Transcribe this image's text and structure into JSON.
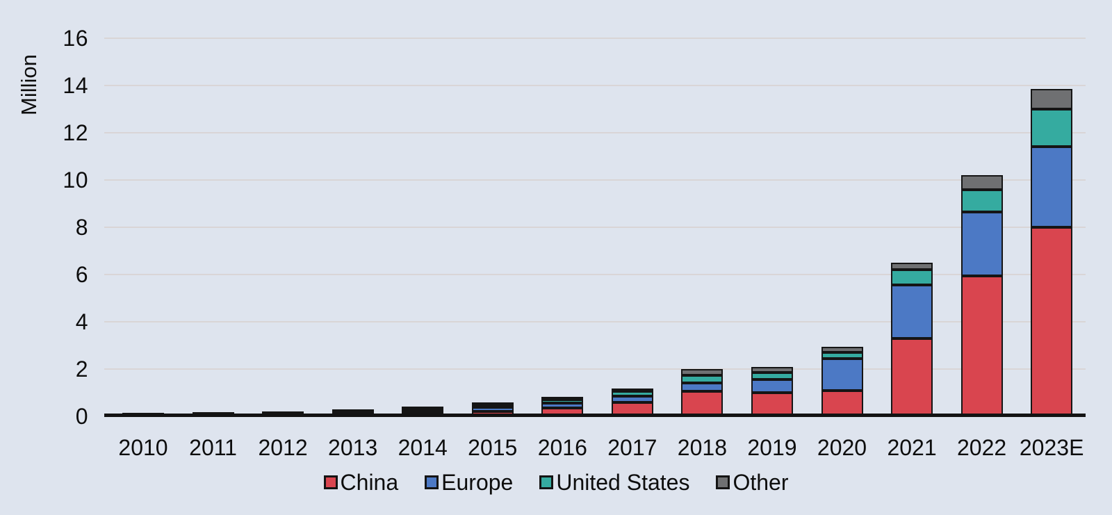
{
  "chart_data": {
    "type": "bar",
    "stacked": true,
    "title": "",
    "ylabel": "Million",
    "xlabel": "",
    "ylim": [
      0,
      16
    ],
    "ytick_step": 2,
    "yticks": [
      "0",
      "2",
      "4",
      "6",
      "8",
      "10",
      "12",
      "14",
      "16"
    ],
    "grid": true,
    "legend_position": "bottom",
    "categories": [
      "2010",
      "2011",
      "2012",
      "2013",
      "2014",
      "2015",
      "2016",
      "2017",
      "2018",
      "2019",
      "2020",
      "2021",
      "2022",
      "2023E"
    ],
    "series": [
      {
        "name": "China",
        "color": "#d9454f",
        "values": [
          0.01,
          0.01,
          0.02,
          0.05,
          0.08,
          0.2,
          0.35,
          0.58,
          1.05,
          1.0,
          1.1,
          3.3,
          5.95,
          8.0
        ]
      },
      {
        "name": "Europe",
        "color": "#4c79c5",
        "values": [
          0.01,
          0.02,
          0.03,
          0.07,
          0.1,
          0.18,
          0.2,
          0.28,
          0.35,
          0.55,
          1.35,
          2.25,
          2.7,
          3.4
        ]
      },
      {
        "name": "United States",
        "color": "#35aba0",
        "values": [
          0.005,
          0.02,
          0.05,
          0.06,
          0.12,
          0.1,
          0.15,
          0.19,
          0.35,
          0.3,
          0.25,
          0.65,
          0.95,
          1.6
        ]
      },
      {
        "name": "Other",
        "color": "#6f7072",
        "values": [
          0.005,
          0.01,
          0.02,
          0.02,
          0.02,
          0.05,
          0.05,
          0.1,
          0.25,
          0.25,
          0.25,
          0.3,
          0.6,
          0.85
        ]
      }
    ],
    "colors": {
      "background": "#dee4ee",
      "gridline": "#d9d5d6",
      "axis": "#131313",
      "bar_border": "#151515",
      "text": "#0d0d0d"
    }
  }
}
